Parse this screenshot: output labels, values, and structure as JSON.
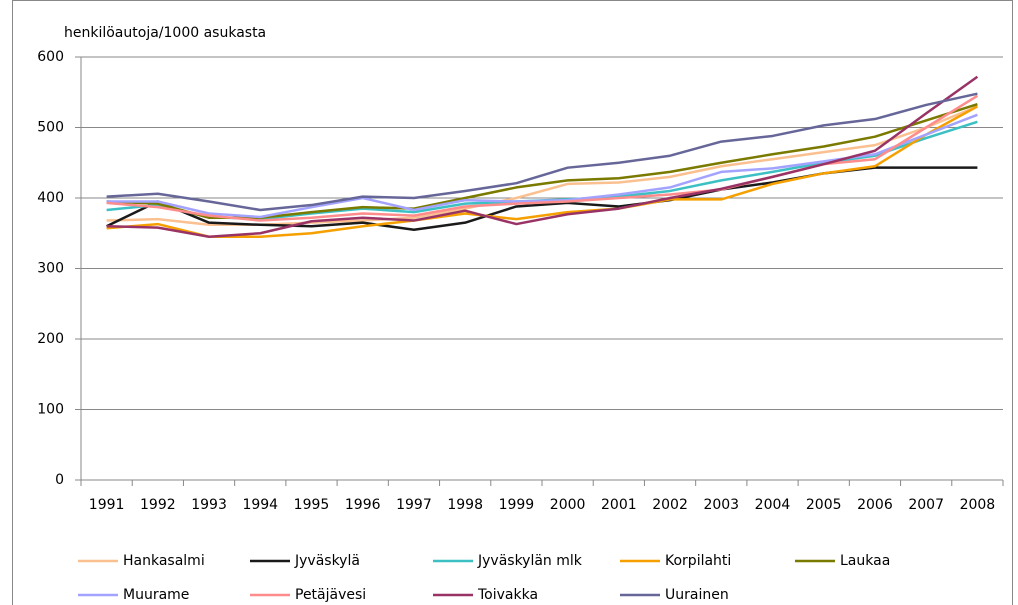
{
  "chart_data": {
    "type": "line",
    "y_axis_label": "henkilöautoja/1000 asukasta",
    "categories": [
      "1991",
      "1992",
      "1993",
      "1994",
      "1995",
      "1996",
      "1997",
      "1998",
      "1999",
      "2000",
      "2001",
      "2002",
      "2003",
      "2004",
      "2005",
      "2006",
      "2007",
      "2008"
    ],
    "ylim": [
      0,
      600
    ],
    "yticks": [
      0,
      100,
      200,
      300,
      400,
      500,
      600
    ],
    "grid": true,
    "legend": "bottom",
    "series": [
      {
        "name": "Hankasalmi",
        "color": "#fac090",
        "values": [
          368,
          370,
          362,
          362,
          365,
          368,
          372,
          385,
          400,
          420,
          422,
          430,
          445,
          455,
          465,
          475,
          500,
          530
        ]
      },
      {
        "name": "Jyväskylä",
        "color": "#1a1a1a",
        "values": [
          360,
          395,
          365,
          362,
          360,
          365,
          355,
          365,
          388,
          393,
          388,
          397,
          412,
          422,
          435,
          443,
          443,
          443
        ]
      },
      {
        "name": "Jyväskylän mlk",
        "color": "#3cc0c4",
        "values": [
          383,
          390,
          373,
          370,
          378,
          385,
          380,
          392,
          395,
          398,
          402,
          410,
          425,
          437,
          450,
          460,
          485,
          508
        ]
      },
      {
        "name": "Korpilahti",
        "color": "#f5a000",
        "values": [
          357,
          363,
          345,
          345,
          350,
          360,
          368,
          378,
          370,
          380,
          385,
          398,
          398,
          420,
          435,
          445,
          490,
          530
        ]
      },
      {
        "name": "Laukaa",
        "color": "#7a7a00",
        "values": [
          395,
          392,
          372,
          372,
          380,
          387,
          385,
          400,
          415,
          425,
          428,
          437,
          450,
          462,
          473,
          487,
          510,
          533
        ]
      },
      {
        "name": "Muurame",
        "color": "#a3a3ff",
        "values": [
          395,
          395,
          378,
          373,
          387,
          400,
          383,
          397,
          395,
          397,
          405,
          415,
          437,
          442,
          452,
          462,
          490,
          518
        ]
      },
      {
        "name": "Petäjävesi",
        "color": "#ff8c8c",
        "values": [
          393,
          387,
          375,
          368,
          372,
          378,
          375,
          388,
          392,
          395,
          400,
          405,
          412,
          430,
          448,
          455,
          500,
          545
        ]
      },
      {
        "name": "Toivakka",
        "color": "#993366",
        "values": [
          360,
          358,
          345,
          350,
          367,
          372,
          368,
          382,
          363,
          377,
          385,
          400,
          413,
          430,
          448,
          467,
          520,
          572
        ]
      },
      {
        "name": "Uurainen",
        "color": "#666699",
        "values": [
          402,
          406,
          395,
          383,
          390,
          402,
          400,
          410,
          421,
          443,
          450,
          460,
          480,
          488,
          503,
          512,
          532,
          548
        ]
      }
    ]
  }
}
